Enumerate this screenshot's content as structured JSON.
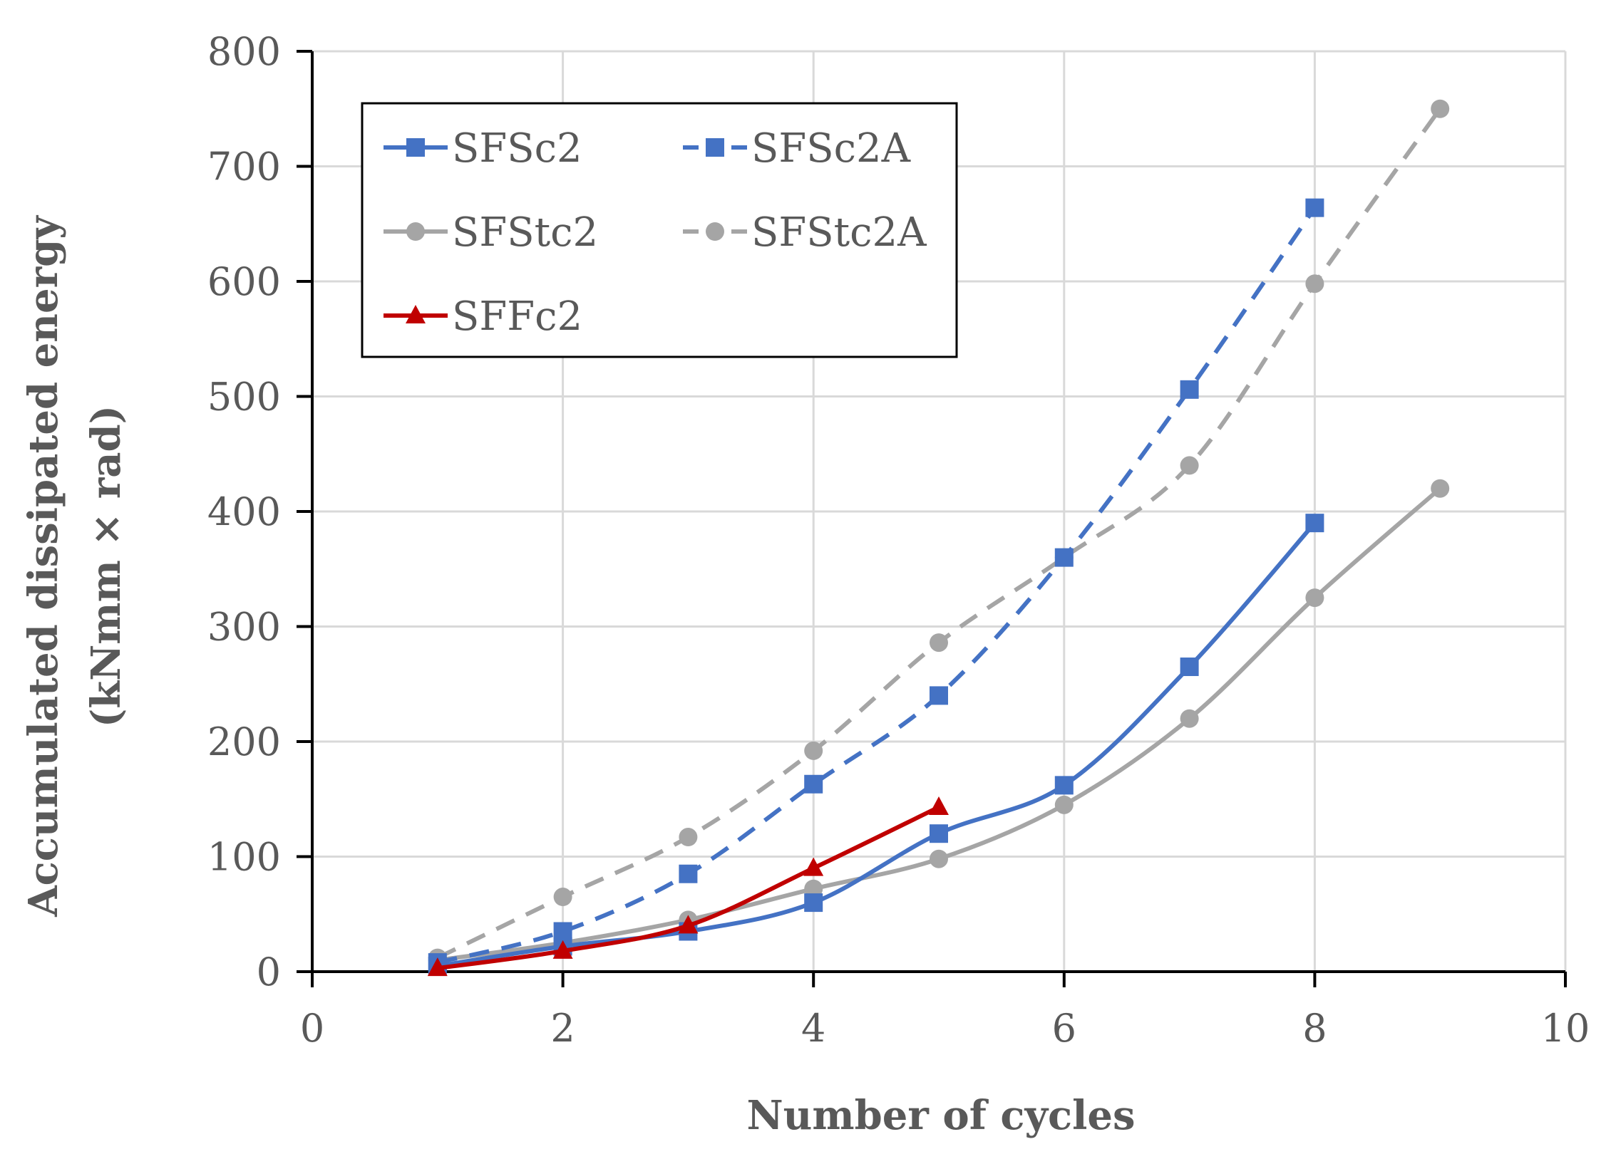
{
  "chart_data": {
    "type": "line",
    "title": "",
    "xlabel": "Number of cycles",
    "ylabel_lines": [
      "Accumulated  dissipated energy",
      "(kNmm × rad)"
    ],
    "xlim": [
      0,
      10
    ],
    "ylim": [
      0,
      800
    ],
    "x_ticks": [
      0,
      2,
      4,
      6,
      8,
      10
    ],
    "y_ticks": [
      0,
      100,
      200,
      300,
      400,
      500,
      600,
      700,
      800
    ],
    "grid": true,
    "legend_position": "top-left",
    "series": [
      {
        "name": "SFSc2",
        "color": "#4472C4",
        "dash": "solid",
        "marker": "square",
        "x": [
          1,
          2,
          3,
          4,
          5,
          6,
          7,
          8
        ],
        "y": [
          5,
          22,
          35,
          60,
          120,
          162,
          265,
          390
        ]
      },
      {
        "name": "SFSc2A",
        "color": "#4472C4",
        "dash": "dashed",
        "marker": "square",
        "x": [
          1,
          2,
          3,
          4,
          5,
          6,
          7,
          8
        ],
        "y": [
          8,
          35,
          85,
          163,
          240,
          360,
          506,
          664
        ]
      },
      {
        "name": "SFStc2",
        "color": "#A5A5A5",
        "dash": "solid",
        "marker": "circle",
        "x": [
          1,
          2,
          3,
          4,
          5,
          6,
          7,
          8,
          9
        ],
        "y": [
          10,
          25,
          45,
          72,
          98,
          145,
          220,
          325,
          420
        ]
      },
      {
        "name": "SFStc2A",
        "color": "#A5A5A5",
        "dash": "dashed",
        "marker": "circle",
        "x": [
          1,
          2,
          3,
          4,
          5,
          6,
          7,
          8,
          9
        ],
        "y": [
          12,
          65,
          117,
          192,
          286,
          360,
          440,
          598,
          750
        ]
      },
      {
        "name": "SFFc2",
        "color": "#C00000",
        "dash": "solid",
        "marker": "triangle",
        "x": [
          1,
          2,
          3,
          4,
          5
        ],
        "y": [
          3,
          18,
          40,
          90,
          143
        ]
      }
    ]
  }
}
